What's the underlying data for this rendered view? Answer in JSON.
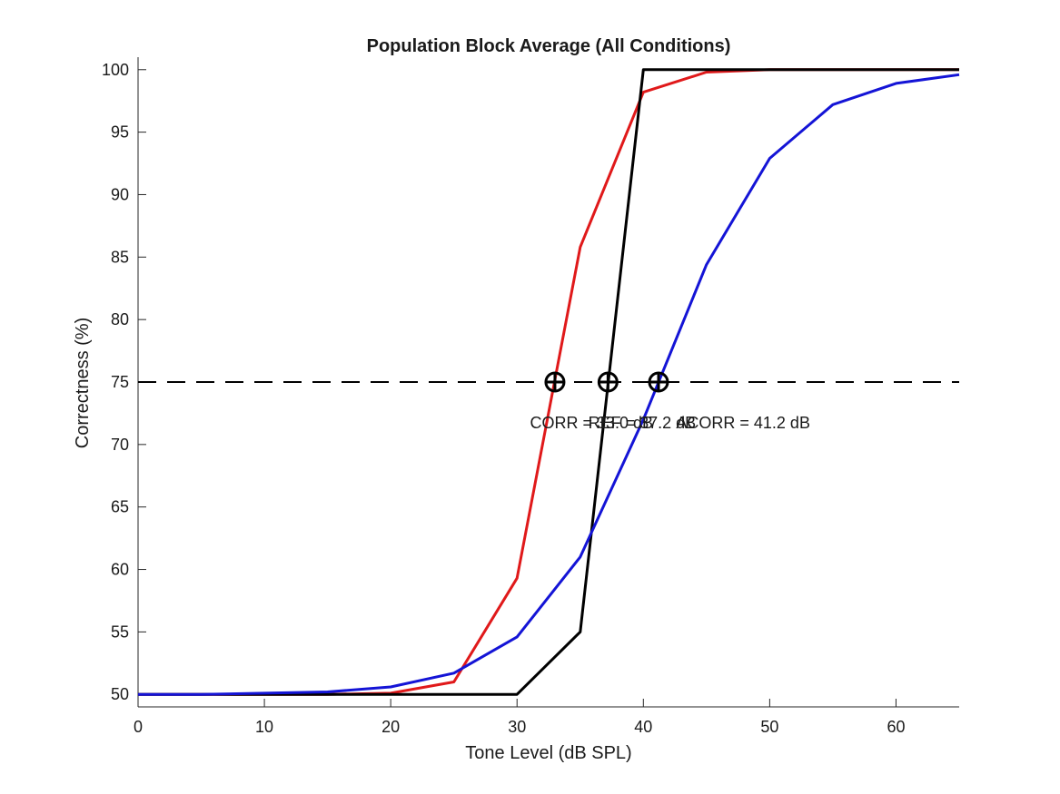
{
  "chart_data": {
    "type": "line",
    "title": "Population Block Average (All Conditions)",
    "xlabel": "Tone Level (dB SPL)",
    "ylabel": "Correctness (%)",
    "xlim": [
      0,
      65
    ],
    "ylim": [
      49,
      101
    ],
    "xticks": [
      0,
      10,
      20,
      30,
      40,
      50,
      60
    ],
    "yticks": [
      50,
      55,
      60,
      65,
      70,
      75,
      80,
      85,
      90,
      95,
      100
    ],
    "grid": false,
    "legend": "none",
    "series": [
      {
        "color": "#e0191a",
        "x": [
          0,
          5,
          10,
          15,
          20,
          25,
          30,
          35,
          40,
          45,
          50,
          55,
          60,
          65
        ],
        "y": [
          50,
          50,
          50,
          50,
          50.1,
          51.0,
          59.3,
          85.8,
          98.2,
          99.8,
          100,
          100,
          100,
          100
        ]
      },
      {
        "color": "#000000",
        "x": [
          0,
          5,
          10,
          15,
          20,
          25,
          30,
          35,
          40,
          45,
          50,
          55,
          60,
          65
        ],
        "y": [
          50,
          50,
          50,
          50,
          50,
          50,
          50,
          55.0,
          100,
          100,
          100,
          100,
          100,
          100
        ]
      },
      {
        "color": "#1414d6",
        "x": [
          0,
          5,
          10,
          15,
          20,
          25,
          30,
          35,
          40,
          45,
          50,
          55,
          60,
          65
        ],
        "y": [
          50,
          50,
          50.1,
          50.2,
          50.6,
          51.7,
          54.6,
          61.0,
          72.0,
          84.4,
          92.9,
          97.2,
          98.9,
          99.6
        ]
      }
    ],
    "reference_line": {
      "y": 75,
      "style": "dashed",
      "color": "#000000"
    },
    "thresholds": [
      {
        "x": 33.0,
        "y": 75,
        "label": "CORR = 33.0 dB"
      },
      {
        "x": 37.2,
        "y": 75,
        "label": "REF = 37.2 dB"
      },
      {
        "x": 41.2,
        "y": 75,
        "label": "ACORR = 41.2 dB"
      }
    ]
  }
}
